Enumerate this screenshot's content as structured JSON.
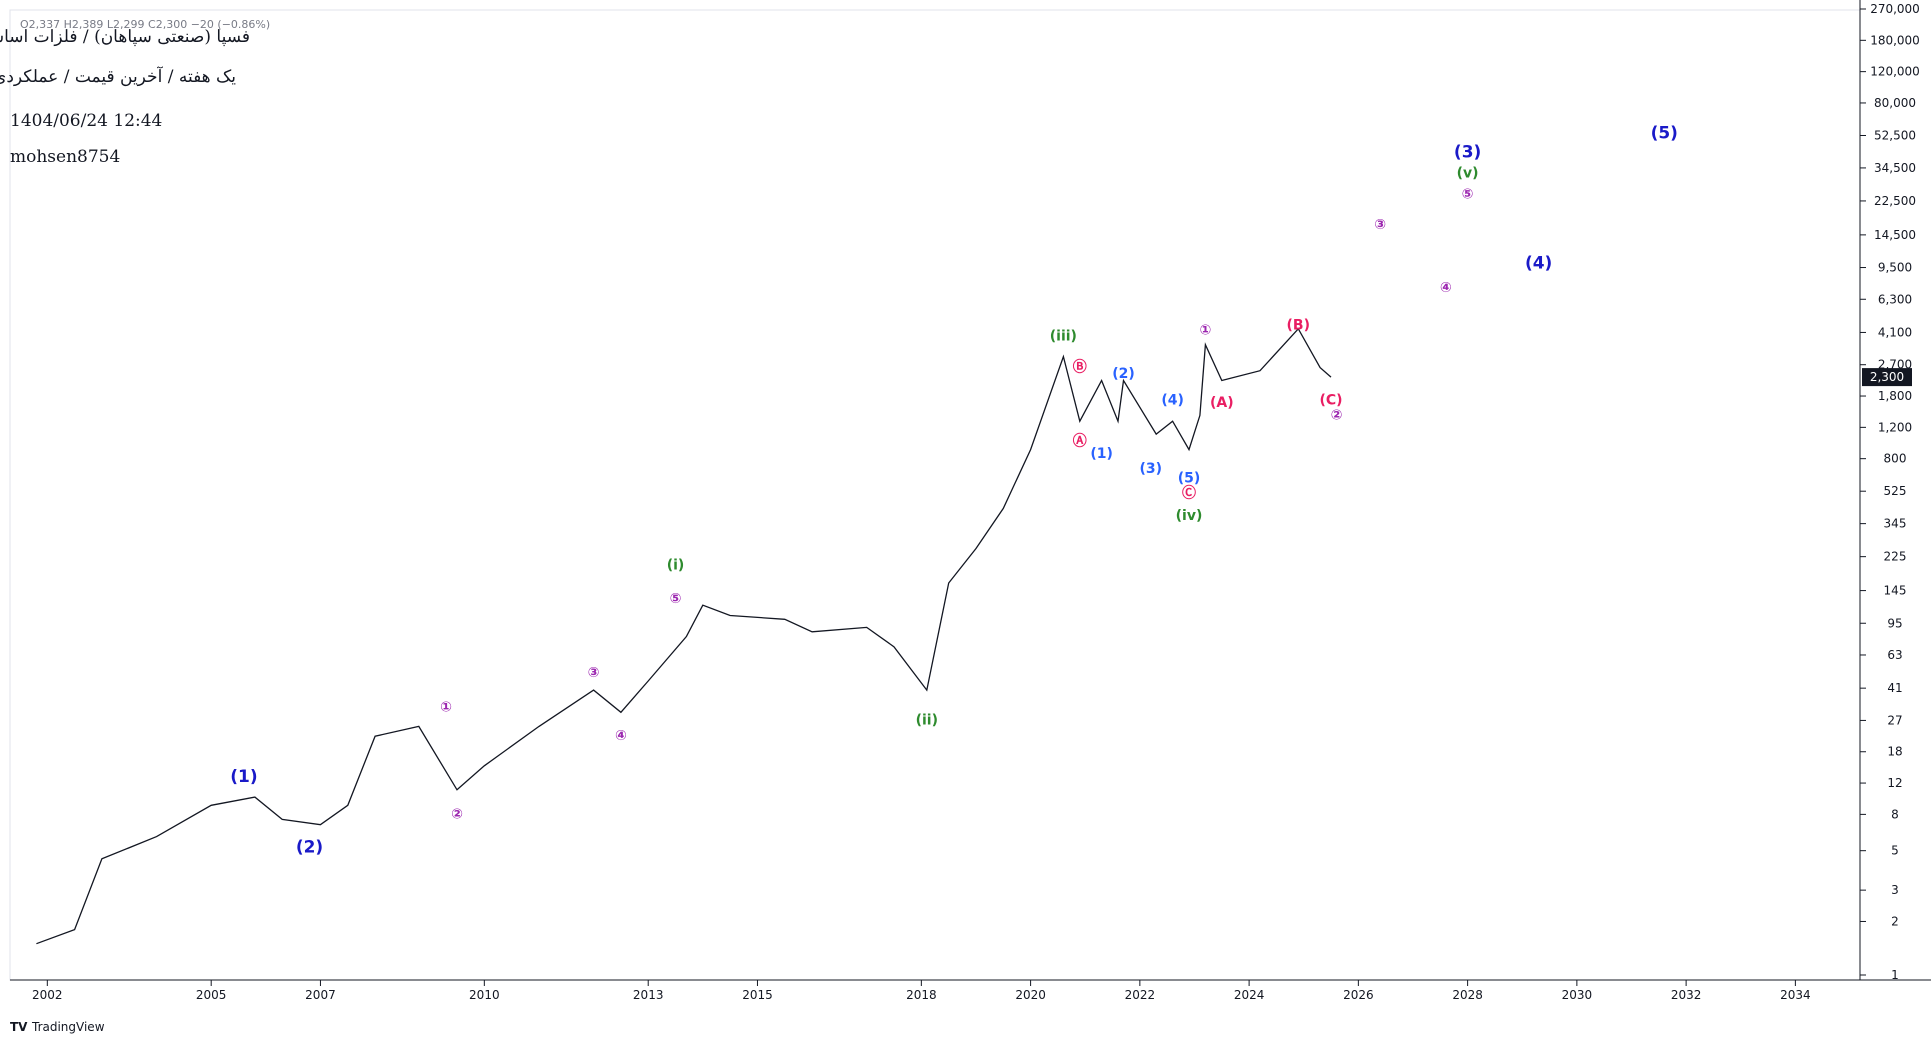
{
  "chart_data": {
    "type": "line",
    "title": "فسپا (صنعتی سپاهان) / فلزات اساسی",
    "subtitle": "یک هفته / آخرین قیمت / عملکردی",
    "date": "1404/06/24 12:44",
    "author": "mohsen8754",
    "ohlc": "O2,337  H2,389  L2,299  C2,300  −20 (−0.86%)",
    "last_price": {
      "value": 2300,
      "label": "2,300"
    },
    "brand": "TradingView",
    "log_scale": true,
    "xlim": [
      2001.5,
      2035
    ],
    "ylim": [
      1,
      270000
    ],
    "xticks": [
      2002,
      2005,
      2007,
      2010,
      2013,
      2015,
      2018,
      2020,
      2022,
      2024,
      2026,
      2028,
      2030,
      2032,
      2034
    ],
    "yticks": [
      1,
      2,
      3,
      5,
      8,
      12,
      18,
      27,
      41,
      63,
      95,
      145,
      225,
      345,
      525,
      800,
      {
        "value": 1200,
        "label": "1,200"
      },
      {
        "value": 1800,
        "label": "1,800"
      },
      {
        "value": 2700,
        "label": "2,700"
      },
      {
        "value": 4100,
        "label": "4,100"
      },
      {
        "value": 6300,
        "label": "6,300"
      },
      {
        "value": 9500,
        "label": "9,500"
      },
      {
        "value": 14500,
        "label": "14,500"
      },
      {
        "value": 22500,
        "label": "22,500"
      },
      {
        "value": 34500,
        "label": "34,500"
      },
      {
        "value": 52500,
        "label": "52,500"
      },
      {
        "value": 80000,
        "label": "80,000"
      },
      {
        "value": 120000,
        "label": "120,000"
      },
      {
        "value": 180000,
        "label": "180,000"
      },
      {
        "value": 270000,
        "label": "270,000"
      }
    ],
    "series": [
      {
        "name": "فسپا",
        "color": "#131722",
        "x": [
          2001.8,
          2002.5,
          2003,
          2004,
          2005,
          2005.8,
          2006.3,
          2007,
          2007.5,
          2008,
          2008.8,
          2009.5,
          2010,
          2011,
          2012,
          2012.5,
          2013,
          2013.7,
          2014,
          2014.5,
          2015.5,
          2016,
          2017,
          2017.5,
          2018.1,
          2018.5,
          2019,
          2019.5,
          2020,
          2020.6,
          2020.9,
          2021.3,
          2021.6,
          2021.7,
          2022.3,
          2022.6,
          2022.9,
          2023.1,
          2023.2,
          2023.5,
          2024.2,
          2024.9,
          2025.3,
          2025.5
        ],
        "values": [
          1.5,
          1.8,
          4.5,
          6,
          9,
          10,
          7.5,
          7,
          9,
          22,
          25,
          11,
          15,
          25,
          40,
          30,
          45,
          80,
          120,
          105,
          100,
          85,
          90,
          70,
          40,
          160,
          250,
          420,
          900,
          3000,
          1300,
          2200,
          1300,
          2200,
          1100,
          1300,
          900,
          1400,
          3500,
          2200,
          2500,
          4300,
          2600,
          2300
        ]
      }
    ],
    "annotations": [
      {
        "text": "(1)",
        "x": 2005.6,
        "y": 13,
        "color": "#1a1ac8"
      },
      {
        "text": "(2)",
        "x": 2006.8,
        "y": 5.2,
        "color": "#1a1ac8"
      },
      {
        "text": "①",
        "x": 2009.3,
        "y": 32,
        "color": "#9c27b0"
      },
      {
        "text": "②",
        "x": 2009.5,
        "y": 8,
        "color": "#9c27b0"
      },
      {
        "text": "③",
        "x": 2012,
        "y": 50,
        "color": "#9c27b0"
      },
      {
        "text": "④",
        "x": 2012.5,
        "y": 22,
        "color": "#9c27b0"
      },
      {
        "text": "⑤",
        "x": 2013.5,
        "y": 130,
        "color": "#9c27b0"
      },
      {
        "text": "(i)",
        "x": 2013.5,
        "y": 200,
        "color": "#2e8b2e"
      },
      {
        "text": "(ii)",
        "x": 2018.1,
        "y": 27,
        "color": "#2e8b2e"
      },
      {
        "text": "(iii)",
        "x": 2020.6,
        "y": 3900,
        "color": "#2e8b2e"
      },
      {
        "text": "Ⓐ",
        "x": 2020.9,
        "y": 1000,
        "color": "#e91e63"
      },
      {
        "text": "Ⓑ",
        "x": 2020.9,
        "y": 2600,
        "color": "#e91e63"
      },
      {
        "text": "(1)",
        "x": 2021.3,
        "y": 850,
        "color": "#2962ff"
      },
      {
        "text": "(2)",
        "x": 2021.7,
        "y": 2400,
        "color": "#2962ff"
      },
      {
        "text": "(3)",
        "x": 2022.2,
        "y": 700,
        "color": "#2962ff"
      },
      {
        "text": "(4)",
        "x": 2022.6,
        "y": 1700,
        "color": "#2962ff"
      },
      {
        "text": "(5)",
        "x": 2022.9,
        "y": 620,
        "color": "#2962ff"
      },
      {
        "text": "Ⓒ",
        "x": 2022.9,
        "y": 510,
        "color": "#e91e63"
      },
      {
        "text": "(iv)",
        "x": 2022.9,
        "y": 380,
        "color": "#2e8b2e"
      },
      {
        "text": "①",
        "x": 2023.2,
        "y": 4200,
        "color": "#9c27b0"
      },
      {
        "text": "(A)",
        "x": 2023.5,
        "y": 1650,
        "color": "#e91e63"
      },
      {
        "text": "(B)",
        "x": 2024.9,
        "y": 4500,
        "color": "#e91e63"
      },
      {
        "text": "(C)",
        "x": 2025.5,
        "y": 1700,
        "color": "#e91e63"
      },
      {
        "text": "②",
        "x": 2025.6,
        "y": 1400,
        "color": "#9c27b0"
      },
      {
        "text": "③",
        "x": 2026.4,
        "y": 16500,
        "color": "#9c27b0"
      },
      {
        "text": "④",
        "x": 2027.6,
        "y": 7300,
        "color": "#9c27b0"
      },
      {
        "text": "⑤",
        "x": 2028,
        "y": 24500,
        "color": "#9c27b0"
      },
      {
        "text": "(v)",
        "x": 2028,
        "y": 32000,
        "color": "#2e8b2e"
      },
      {
        "text": "(3)",
        "x": 2028,
        "y": 42000,
        "color": "#1a1ac8"
      },
      {
        "text": "(4)",
        "x": 2029.3,
        "y": 10000,
        "color": "#1a1ac8"
      },
      {
        "text": "(5)",
        "x": 2031.6,
        "y": 54000,
        "color": "#1a1ac8"
      }
    ]
  }
}
